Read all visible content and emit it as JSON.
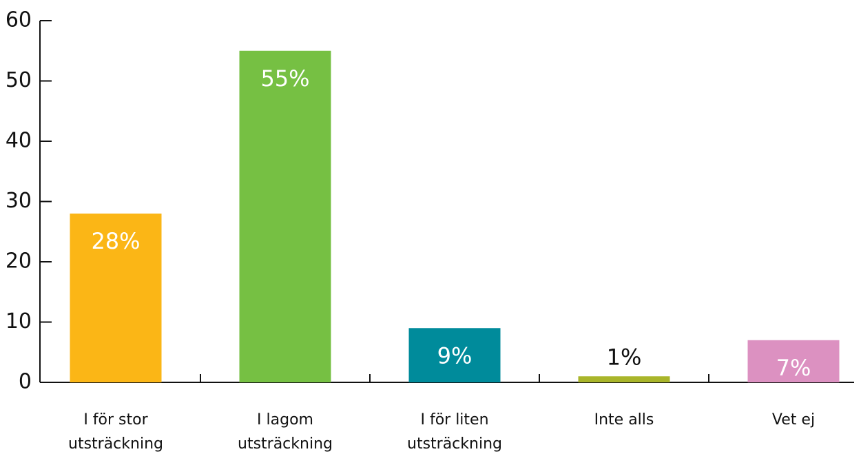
{
  "chart_data": {
    "type": "bar",
    "categories": [
      "I för stor utsträckning",
      "I lagom utsträckning",
      "I för liten utsträckning",
      "Inte alls",
      "Vet ej"
    ],
    "values": [
      28,
      55,
      9,
      1,
      7
    ],
    "value_labels": [
      "28%",
      "55%",
      "9%",
      "1%",
      "7%"
    ],
    "colors": [
      "#fbb616",
      "#76c043",
      "#008b9b",
      "#a9b52a",
      "#dc91c1"
    ],
    "ylim": [
      0,
      60
    ],
    "yticks": [
      0,
      10,
      20,
      30,
      40,
      50,
      60
    ]
  }
}
